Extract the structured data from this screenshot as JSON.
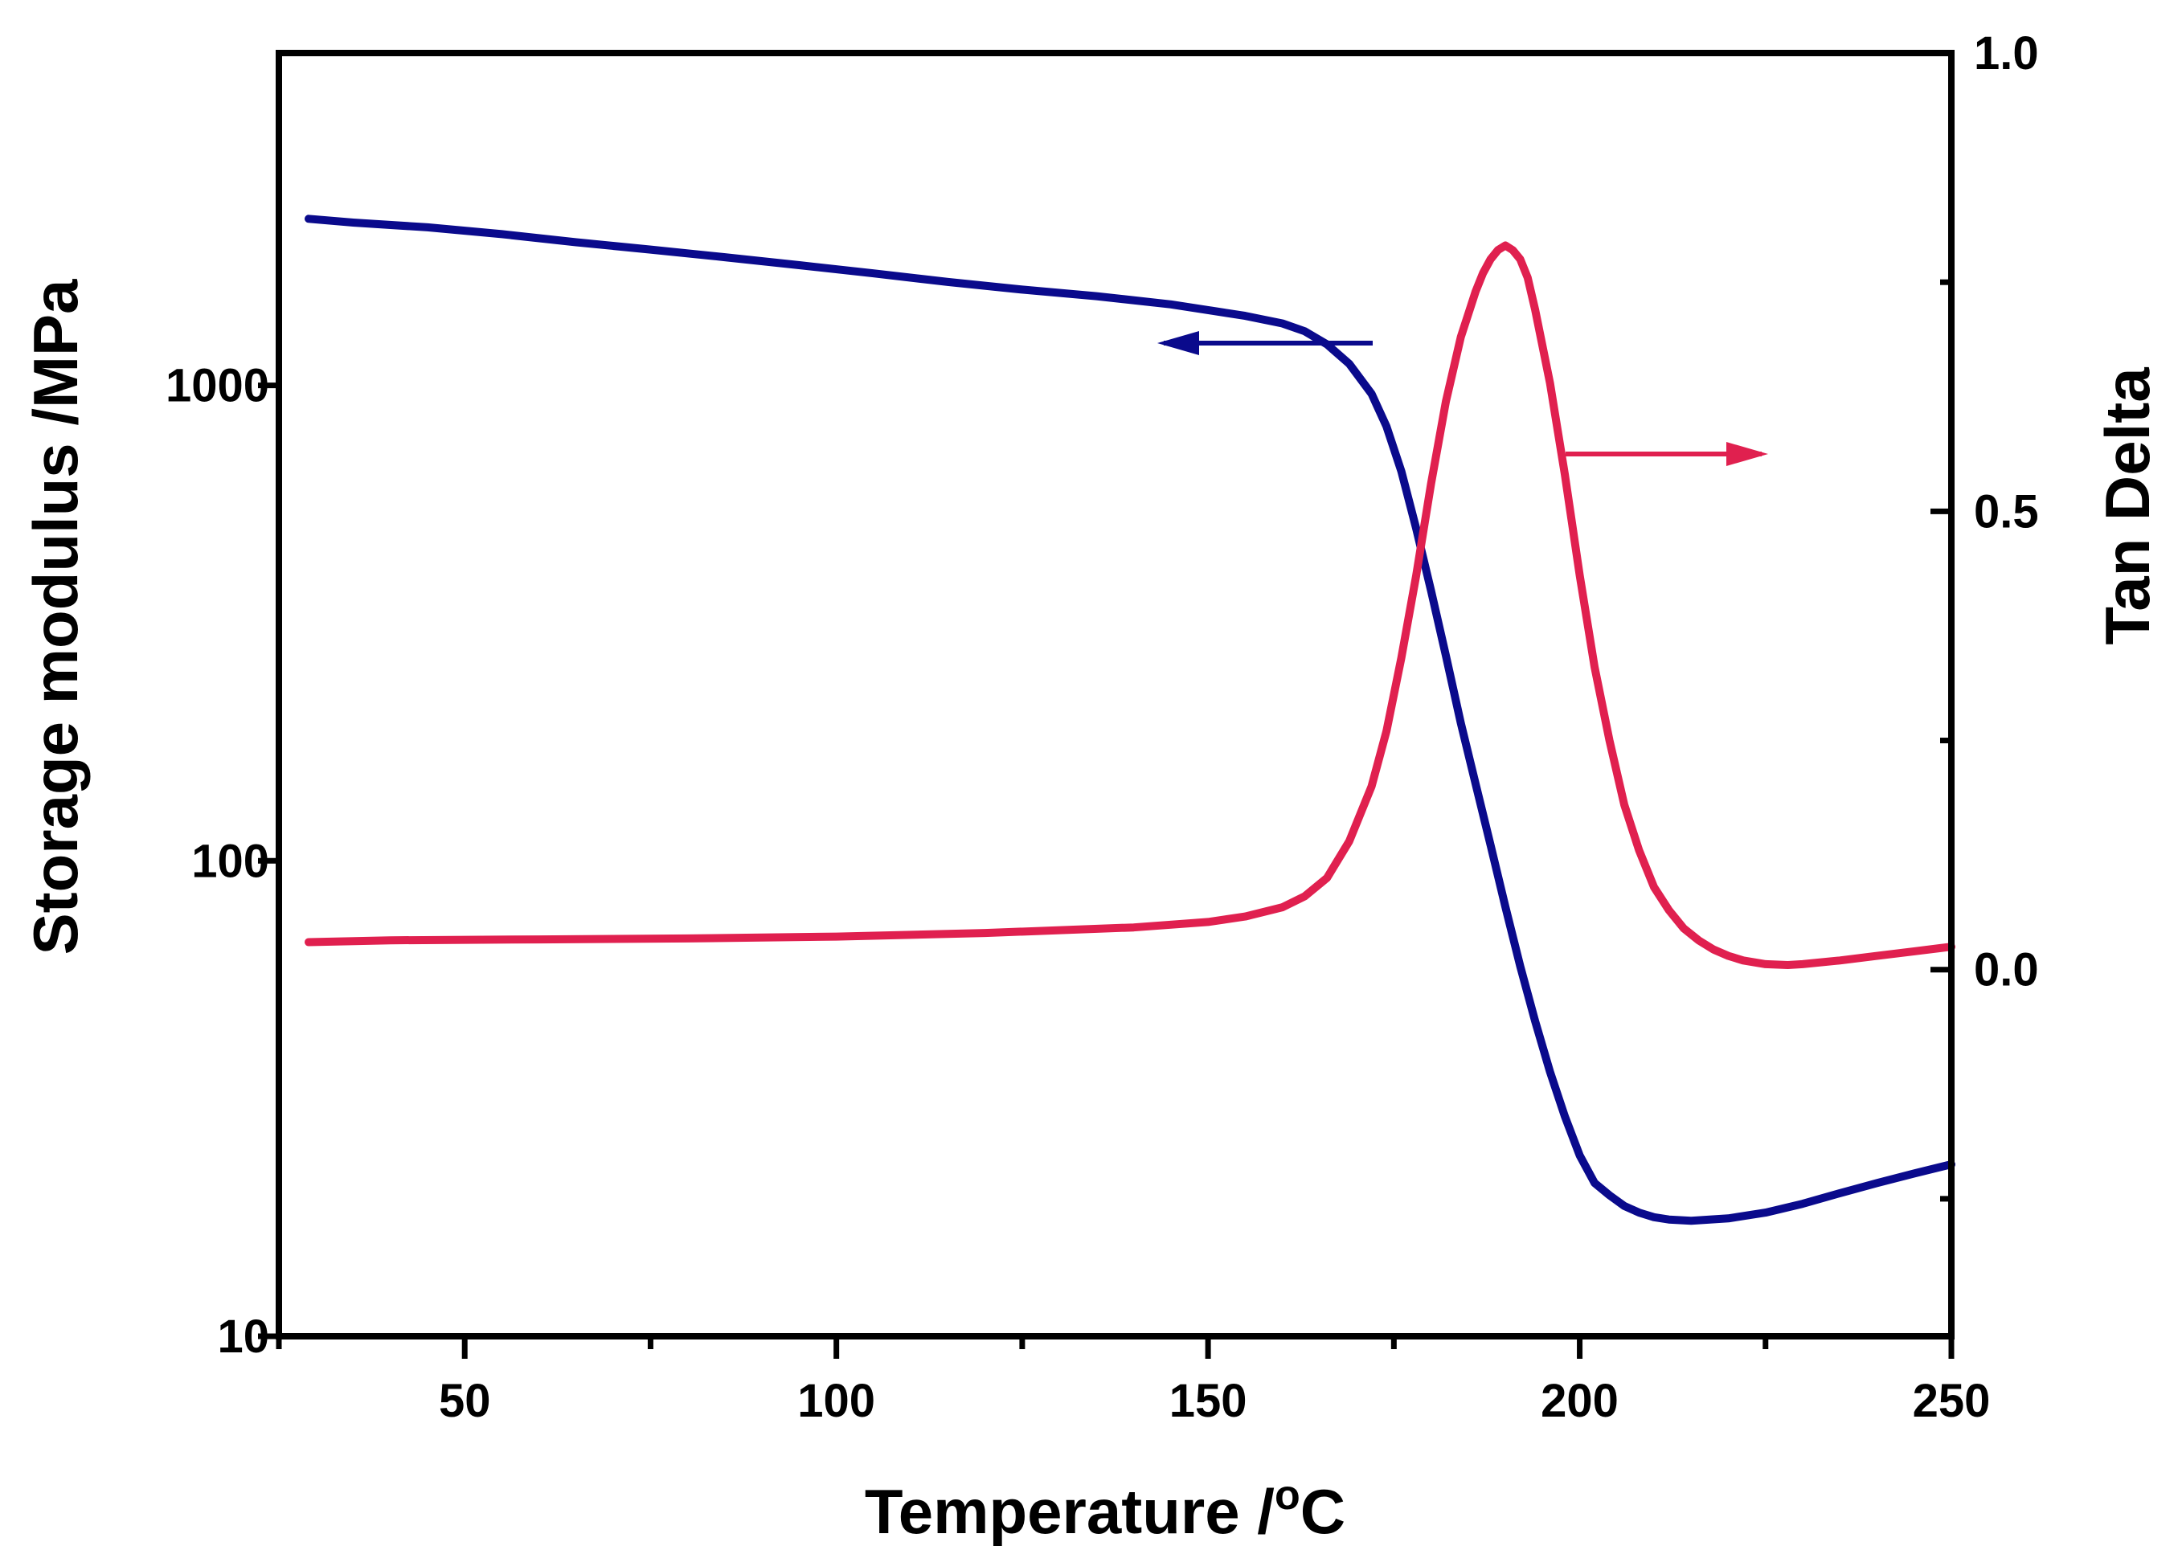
{
  "chart_data": {
    "type": "line",
    "title": "",
    "xlabel": "Temperature /",
    "xlabel_unit_sup": "o",
    "xlabel_unit": "C",
    "ylabel_left": "Storage modulus /MPa",
    "ylabel_right": "Tan Delta",
    "xlim": [
      25,
      250
    ],
    "ylim_left": [
      10,
      5000
    ],
    "yscale_left": "log",
    "ylim_right": [
      -0.4,
      1.0
    ],
    "x_ticks": [
      50,
      100,
      150,
      200,
      250
    ],
    "x_tick_labels": [
      "50",
      "100",
      "150",
      "200",
      "250"
    ],
    "y_left_ticks": [
      10,
      100,
      1000
    ],
    "y_left_tick_labels": [
      "10",
      "100",
      "1000"
    ],
    "y_right_ticks": [
      0.0,
      0.5,
      1.0
    ],
    "y_right_tick_labels": [
      "0.0",
      "0.5",
      "1.0"
    ],
    "colors": {
      "storage": "#0a0a8c",
      "tan": "#e0204f"
    },
    "series": [
      {
        "name": "Storage modulus",
        "axis": "left",
        "x": [
          29,
          35,
          45,
          55,
          65,
          75,
          85,
          95,
          105,
          115,
          125,
          135,
          145,
          150,
          155,
          160,
          163,
          166,
          169,
          172,
          174,
          176,
          178,
          180,
          182,
          184,
          186,
          188,
          190,
          192,
          194,
          196,
          198,
          200,
          202,
          204,
          206,
          208,
          210,
          212,
          215,
          220,
          225,
          230,
          235,
          240,
          245,
          250
        ],
        "y": [
          2240,
          2200,
          2150,
          2080,
          2000,
          1930,
          1860,
          1790,
          1720,
          1650,
          1590,
          1540,
          1480,
          1440,
          1400,
          1350,
          1300,
          1220,
          1110,
          960,
          820,
          660,
          500,
          370,
          270,
          195,
          145,
          108,
          80,
          60,
          46,
          36,
          29,
          24,
          21,
          19.8,
          18.8,
          18.2,
          17.8,
          17.6,
          17.5,
          17.7,
          18.2,
          19,
          20,
          21,
          22,
          23
        ]
      },
      {
        "name": "Tan Delta",
        "axis": "right",
        "x": [
          29,
          40,
          60,
          80,
          100,
          120,
          140,
          150,
          155,
          160,
          163,
          166,
          169,
          172,
          174,
          176,
          178,
          180,
          182,
          184,
          186,
          187,
          188,
          189,
          190,
          191,
          192,
          193,
          194,
          196,
          198,
          200,
          202,
          204,
          206,
          208,
          210,
          212,
          214,
          216,
          218,
          220,
          222,
          225,
          228,
          230,
          235,
          240,
          245,
          250
        ],
        "y": [
          0.03,
          0.032,
          0.033,
          0.034,
          0.036,
          0.04,
          0.046,
          0.052,
          0.058,
          0.068,
          0.08,
          0.1,
          0.14,
          0.2,
          0.26,
          0.34,
          0.43,
          0.53,
          0.62,
          0.69,
          0.74,
          0.76,
          0.775,
          0.785,
          0.79,
          0.785,
          0.775,
          0.755,
          0.72,
          0.64,
          0.54,
          0.43,
          0.33,
          0.25,
          0.18,
          0.13,
          0.09,
          0.065,
          0.045,
          0.032,
          0.022,
          0.015,
          0.01,
          0.006,
          0.005,
          0.006,
          0.01,
          0.015,
          0.02,
          0.025
        ]
      }
    ],
    "annotations": [
      {
        "name": "storage-arrow",
        "direction": "left",
        "points_to_axis": "left"
      },
      {
        "name": "tan-arrow",
        "direction": "right",
        "points_to_axis": "right"
      }
    ]
  }
}
